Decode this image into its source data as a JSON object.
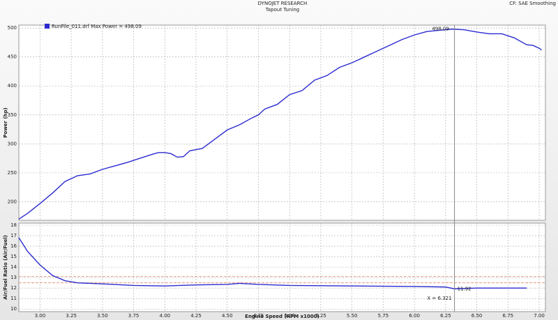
{
  "header": {
    "title": "DYNOJET RESEARCH",
    "subtitle": "Tapout Tuning",
    "corner": "CF: SAE  Smoothing"
  },
  "chart_data": [
    {
      "type": "line",
      "ylabel": "Power (hp)",
      "xlim": [
        2.83,
        7.05
      ],
      "ylim": [
        168,
        505
      ],
      "yticks": [
        200,
        250,
        300,
        350,
        400,
        450,
        500
      ],
      "grid": true,
      "series": [
        {
          "name": "RunFile_011.drf Max Power = 498.09",
          "color": "#2a2ad0",
          "x": [
            2.83,
            2.9,
            3.0,
            3.1,
            3.2,
            3.3,
            3.4,
            3.5,
            3.6,
            3.7,
            3.8,
            3.9,
            3.95,
            4.0,
            4.05,
            4.1,
            4.15,
            4.2,
            4.3,
            4.4,
            4.5,
            4.6,
            4.7,
            4.75,
            4.8,
            4.9,
            5.0,
            5.1,
            5.2,
            5.3,
            5.4,
            5.5,
            5.6,
            5.7,
            5.8,
            5.9,
            6.0,
            6.1,
            6.2,
            6.3,
            6.4,
            6.5,
            6.6,
            6.7,
            6.8,
            6.9,
            6.95,
            7.0,
            7.02
          ],
          "values": [
            170,
            180,
            197,
            215,
            235,
            245,
            248,
            256,
            262,
            268,
            275,
            282,
            285,
            285,
            283,
            277,
            278,
            288,
            292,
            308,
            324,
            333,
            345,
            350,
            360,
            368,
            385,
            392,
            410,
            418,
            432,
            440,
            450,
            460,
            470,
            480,
            488,
            494,
            496,
            498.09,
            497,
            493,
            490,
            490,
            483,
            471,
            470,
            465,
            462
          ]
        }
      ],
      "readout": 498.09
    },
    {
      "type": "line",
      "ylabel": "Air/Fuel Ratio (Air/Fuel)",
      "xlabel": "Engine Speed (RPM x1000)",
      "xlim": [
        2.83,
        7.05
      ],
      "ylim": [
        9.75,
        18.2
      ],
      "xticks": [
        {
          "value": 3.0,
          "label": "3.00"
        },
        {
          "value": 3.25,
          "label": "3.25"
        },
        {
          "value": 3.5,
          "label": "3.50"
        },
        {
          "value": 3.75,
          "label": "3.75"
        },
        {
          "value": 4.0,
          "label": "4.00"
        },
        {
          "value": 4.25,
          "label": "4.25"
        },
        {
          "value": 4.5,
          "label": "4.50"
        },
        {
          "value": 4.75,
          "label": "4.75"
        },
        {
          "value": 5.0,
          "label": "5.00"
        },
        {
          "value": 5.25,
          "label": "5.25"
        },
        {
          "value": 5.5,
          "label": "5.50"
        },
        {
          "value": 5.75,
          "label": "5.75"
        },
        {
          "value": 6.0,
          "label": "6.00"
        },
        {
          "value": 6.25,
          "label": "6.25"
        },
        {
          "value": 6.5,
          "label": "6.50"
        },
        {
          "value": 6.75,
          "label": "6.75"
        },
        {
          "value": 7.0,
          "label": "7.00"
        }
      ],
      "yticks": [
        10,
        11,
        12,
        13,
        14,
        15,
        16,
        17,
        18
      ],
      "grid": true,
      "reference_lines": [
        12.5,
        13.1
      ],
      "series": [
        {
          "color": "#2a2ad0",
          "x": [
            2.83,
            2.9,
            3.0,
            3.1,
            3.2,
            3.3,
            3.5,
            3.75,
            4.0,
            4.25,
            4.5,
            4.6,
            4.75,
            5.0,
            5.5,
            6.0,
            6.25,
            6.32,
            6.5,
            6.9
          ],
          "values": [
            16.8,
            15.5,
            14.2,
            13.2,
            12.7,
            12.5,
            12.4,
            12.25,
            12.2,
            12.3,
            12.35,
            12.45,
            12.35,
            12.25,
            12.2,
            12.15,
            12.1,
            11.93,
            12.0,
            12.0
          ]
        }
      ],
      "cursor": {
        "value": 6.321,
        "label": "X = 6.321"
      },
      "readout": 11.92
    }
  ]
}
